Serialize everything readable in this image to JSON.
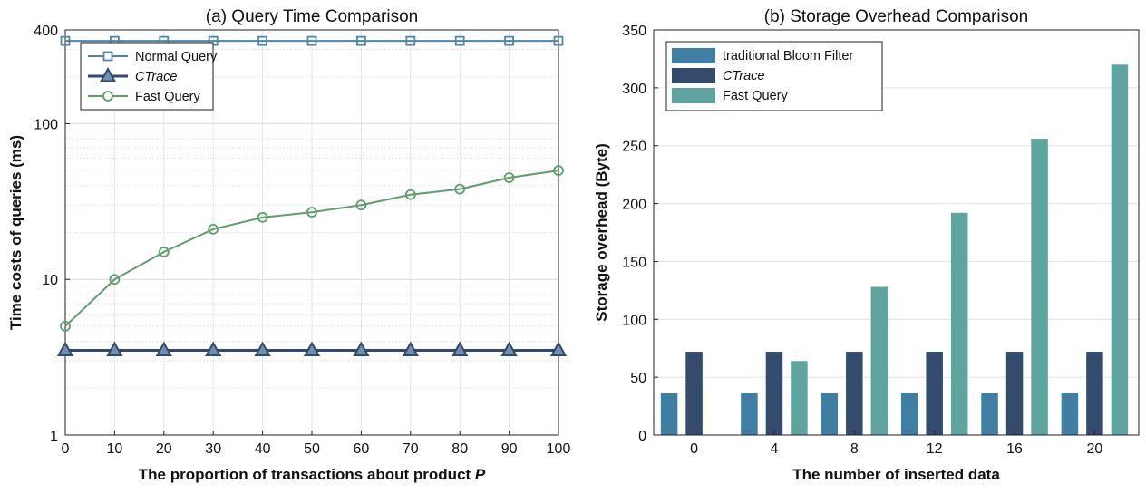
{
  "chart_data": [
    {
      "type": "line",
      "title": "(a) Query Time Comparison",
      "xlabel": "The proportion of transactions about product ",
      "xlabel_italic": "P",
      "ylabel": "Time costs of queries (ms)",
      "yscale": "log",
      "ylim": [
        1,
        400
      ],
      "xlim": [
        0,
        100
      ],
      "xticks": [
        "0",
        "10",
        "20",
        "30",
        "40",
        "50",
        "60",
        "70",
        "80",
        "90",
        "100"
      ],
      "yticks": [
        "1",
        "10",
        "100",
        "400"
      ],
      "x": [
        0,
        10,
        20,
        30,
        40,
        50,
        60,
        70,
        80,
        90,
        100
      ],
      "grid": true,
      "legend_position": "top-left",
      "series": [
        {
          "name": "Normal Query",
          "italic": false,
          "marker": "square",
          "color": "#4f86a5",
          "values": [
            340,
            340,
            340,
            340,
            340,
            340,
            340,
            340,
            340,
            340,
            340
          ]
        },
        {
          "name": "CTrace",
          "italic": true,
          "marker": "triangle",
          "color": "#2f4a6d",
          "values": [
            3.5,
            3.5,
            3.5,
            3.5,
            3.5,
            3.5,
            3.5,
            3.5,
            3.5,
            3.5,
            3.5
          ]
        },
        {
          "name": "Fast Query",
          "italic": false,
          "marker": "circle",
          "color": "#5e9e6c",
          "values": [
            5,
            10,
            15,
            21,
            25,
            27,
            30,
            35,
            38,
            45,
            50
          ]
        }
      ]
    },
    {
      "type": "bar",
      "title": "(b) Storage Overhead Comparison",
      "xlabel": "The number of inserted data",
      "ylabel": "Storage overhead (Byte)",
      "ylim": [
        0,
        350
      ],
      "yticks": [
        "0",
        "50",
        "100",
        "150",
        "200",
        "250",
        "300",
        "350"
      ],
      "categories": [
        "0",
        "4",
        "8",
        "12",
        "16",
        "20"
      ],
      "grid": true,
      "legend_position": "top-left",
      "series": [
        {
          "name": "traditional Bloom Filter",
          "italic": false,
          "color": "#3f7fa4",
          "values": [
            36,
            36,
            36,
            36,
            36,
            36
          ]
        },
        {
          "name": "CTrace",
          "italic": true,
          "color": "#334b6d",
          "values": [
            72,
            72,
            72,
            72,
            72,
            72
          ]
        },
        {
          "name": "Fast Query",
          "italic": false,
          "color": "#5ea59f",
          "values": [
            0,
            64,
            128,
            192,
            256,
            320
          ]
        }
      ]
    }
  ]
}
